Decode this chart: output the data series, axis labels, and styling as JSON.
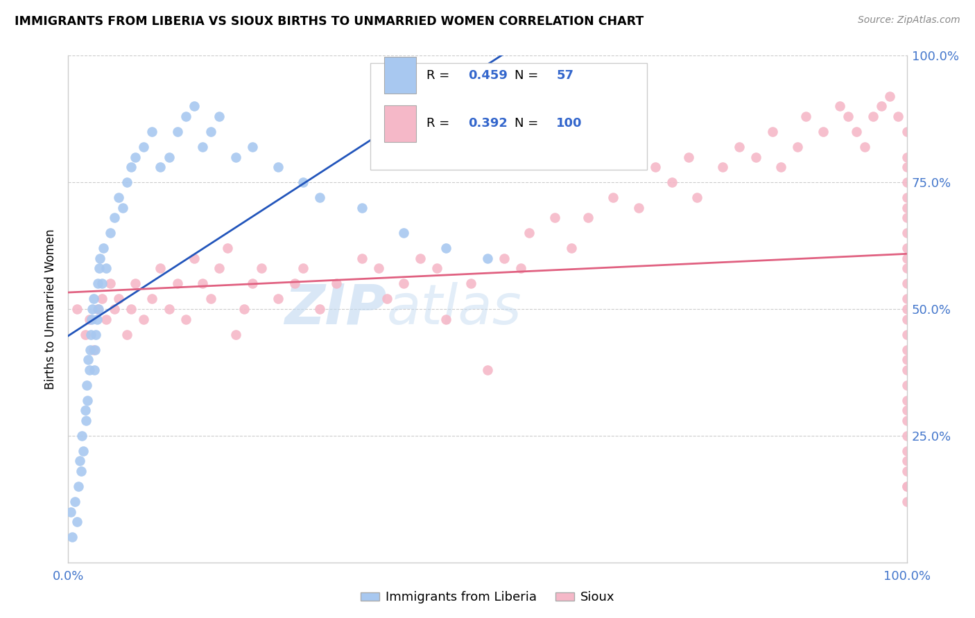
{
  "title": "IMMIGRANTS FROM LIBERIA VS SIOUX BIRTHS TO UNMARRIED WOMEN CORRELATION CHART",
  "source": "Source: ZipAtlas.com",
  "ylabel": "Births to Unmarried Women",
  "legend_blue_label": "Immigrants from Liberia",
  "legend_pink_label": "Sioux",
  "R_blue": 0.459,
  "N_blue": 57,
  "R_pink": 0.392,
  "N_pink": 100,
  "blue_color": "#a8c8f0",
  "pink_color": "#f5b8c8",
  "blue_line_color": "#2255bb",
  "pink_line_color": "#e06080",
  "watermark_zip": "ZIP",
  "watermark_atlas": "atlas",
  "blue_x": [
    0.3,
    0.5,
    0.8,
    1.0,
    1.2,
    1.4,
    1.5,
    1.6,
    1.8,
    2.0,
    2.1,
    2.2,
    2.3,
    2.4,
    2.5,
    2.6,
    2.7,
    2.8,
    2.9,
    3.0,
    3.1,
    3.2,
    3.3,
    3.4,
    3.5,
    3.6,
    3.7,
    3.8,
    4.0,
    4.2,
    4.5,
    5.0,
    5.5,
    6.0,
    6.5,
    7.0,
    7.5,
    8.0,
    9.0,
    10.0,
    11.0,
    12.0,
    13.0,
    14.0,
    15.0,
    16.0,
    17.0,
    18.0,
    20.0,
    22.0,
    25.0,
    28.0,
    30.0,
    35.0,
    40.0,
    45.0,
    50.0
  ],
  "blue_y": [
    10.0,
    5.0,
    12.0,
    8.0,
    15.0,
    20.0,
    18.0,
    25.0,
    22.0,
    30.0,
    28.0,
    35.0,
    32.0,
    40.0,
    38.0,
    42.0,
    45.0,
    48.0,
    50.0,
    52.0,
    38.0,
    42.0,
    45.0,
    48.0,
    55.0,
    50.0,
    58.0,
    60.0,
    55.0,
    62.0,
    58.0,
    65.0,
    68.0,
    72.0,
    70.0,
    75.0,
    78.0,
    80.0,
    82.0,
    85.0,
    78.0,
    80.0,
    85.0,
    88.0,
    90.0,
    82.0,
    85.0,
    88.0,
    80.0,
    82.0,
    78.0,
    75.0,
    72.0,
    70.0,
    65.0,
    62.0,
    60.0
  ],
  "pink_x": [
    1.0,
    2.0,
    2.5,
    3.0,
    3.5,
    4.0,
    4.5,
    5.0,
    5.5,
    6.0,
    7.0,
    7.5,
    8.0,
    9.0,
    10.0,
    11.0,
    12.0,
    13.0,
    14.0,
    15.0,
    16.0,
    17.0,
    18.0,
    19.0,
    20.0,
    21.0,
    22.0,
    23.0,
    25.0,
    27.0,
    28.0,
    30.0,
    32.0,
    35.0,
    37.0,
    38.0,
    40.0,
    42.0,
    44.0,
    45.0,
    48.0,
    50.0,
    52.0,
    54.0,
    55.0,
    58.0,
    60.0,
    62.0,
    65.0,
    68.0,
    70.0,
    72.0,
    74.0,
    75.0,
    78.0,
    80.0,
    82.0,
    84.0,
    85.0,
    87.0,
    88.0,
    90.0,
    92.0,
    93.0,
    94.0,
    95.0,
    96.0,
    97.0,
    98.0,
    99.0,
    100.0,
    100.0,
    100.0,
    100.0,
    100.0,
    100.0,
    100.0,
    100.0,
    100.0,
    100.0,
    100.0,
    100.0,
    100.0,
    100.0,
    100.0,
    100.0,
    100.0,
    100.0,
    100.0,
    100.0,
    100.0,
    100.0,
    100.0,
    100.0,
    100.0,
    100.0,
    100.0,
    100.0,
    100.0,
    100.0
  ],
  "pink_y": [
    50.0,
    45.0,
    48.0,
    42.0,
    50.0,
    52.0,
    48.0,
    55.0,
    50.0,
    52.0,
    45.0,
    50.0,
    55.0,
    48.0,
    52.0,
    58.0,
    50.0,
    55.0,
    48.0,
    60.0,
    55.0,
    52.0,
    58.0,
    62.0,
    45.0,
    50.0,
    55.0,
    58.0,
    52.0,
    55.0,
    58.0,
    50.0,
    55.0,
    60.0,
    58.0,
    52.0,
    55.0,
    60.0,
    58.0,
    48.0,
    55.0,
    38.0,
    60.0,
    58.0,
    65.0,
    68.0,
    62.0,
    68.0,
    72.0,
    70.0,
    78.0,
    75.0,
    80.0,
    72.0,
    78.0,
    82.0,
    80.0,
    85.0,
    78.0,
    82.0,
    88.0,
    85.0,
    90.0,
    88.0,
    85.0,
    82.0,
    88.0,
    90.0,
    92.0,
    88.0,
    85.0,
    80.0,
    78.0,
    75.0,
    72.0,
    70.0,
    68.0,
    65.0,
    62.0,
    60.0,
    58.0,
    55.0,
    52.0,
    50.0,
    48.0,
    45.0,
    42.0,
    40.0,
    38.0,
    35.0,
    32.0,
    30.0,
    15.0,
    28.0,
    25.0,
    22.0,
    20.0,
    18.0,
    15.0,
    12.0
  ]
}
